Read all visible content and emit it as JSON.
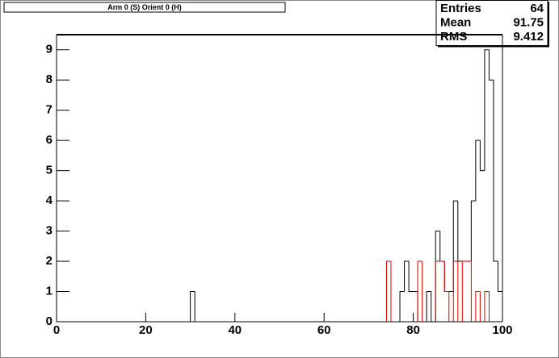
{
  "chart_data": {
    "type": "histogram",
    "title": "Arm 0 (S) Orient 0 (H)",
    "bins": [
      0,
      1,
      2,
      3,
      4,
      5,
      6,
      7,
      8,
      9,
      10,
      11,
      12,
      13,
      14,
      15,
      16,
      17,
      18,
      19,
      20,
      21,
      22,
      23,
      24,
      25,
      26,
      27,
      28,
      29,
      30,
      31,
      32,
      33,
      34,
      35,
      36,
      37,
      38,
      39,
      40,
      41,
      42,
      43,
      44,
      45,
      46,
      47,
      48,
      49,
      50,
      51,
      52,
      53,
      54,
      55,
      56,
      57,
      58,
      59,
      60,
      61,
      62,
      63,
      64,
      65,
      66,
      67,
      68,
      69,
      70,
      71,
      72,
      73,
      74,
      75,
      76,
      77,
      78,
      79,
      80,
      81,
      82,
      83,
      84,
      85,
      86,
      87,
      88,
      89,
      90,
      91,
      92,
      93,
      94,
      95,
      96,
      97,
      98,
      99,
      100
    ],
    "series": [
      {
        "color": "#000000",
        "values": [
          0,
          0,
          0,
          0,
          0,
          0,
          0,
          0,
          0,
          0,
          0,
          0,
          0,
          0,
          0,
          0,
          0,
          0,
          0,
          0,
          0,
          0,
          0,
          0,
          0,
          0,
          0,
          0,
          0,
          0,
          1,
          0,
          0,
          0,
          0,
          0,
          0,
          0,
          0,
          0,
          0,
          0,
          0,
          0,
          0,
          0,
          0,
          0,
          0,
          0,
          0,
          0,
          0,
          0,
          0,
          0,
          0,
          0,
          0,
          0,
          0,
          0,
          0,
          0,
          0,
          0,
          0,
          0,
          0,
          0,
          0,
          0,
          0,
          0,
          0,
          0,
          0,
          1,
          2,
          1,
          1,
          0,
          0,
          1,
          0,
          3,
          2,
          1,
          1,
          4,
          2,
          2,
          2,
          4,
          6,
          5,
          9,
          8,
          2,
          1
        ]
      },
      {
        "color": "#e00000",
        "values": [
          0,
          0,
          0,
          0,
          0,
          0,
          0,
          0,
          0,
          0,
          0,
          0,
          0,
          0,
          0,
          0,
          0,
          0,
          0,
          0,
          0,
          0,
          0,
          0,
          0,
          0,
          0,
          0,
          0,
          0,
          0,
          0,
          0,
          0,
          0,
          0,
          0,
          0,
          0,
          0,
          0,
          0,
          0,
          0,
          0,
          0,
          0,
          0,
          0,
          0,
          0,
          0,
          0,
          0,
          0,
          0,
          0,
          0,
          0,
          0,
          0,
          0,
          0,
          0,
          0,
          0,
          0,
          0,
          0,
          0,
          0,
          0,
          0,
          0,
          2,
          0,
          0,
          0,
          0,
          0,
          0,
          2,
          0,
          0,
          0,
          2,
          2,
          1,
          0,
          2,
          0,
          2,
          2,
          0,
          1,
          0,
          1,
          0,
          0,
          0
        ]
      }
    ],
    "xlim": [
      0,
      100
    ],
    "xticks": [
      0,
      20,
      40,
      60,
      80,
      100
    ],
    "ylim": [
      0,
      9.5
    ],
    "yticks": [
      0,
      1,
      2,
      3,
      4,
      5,
      6,
      7,
      8,
      9
    ],
    "stats": [
      {
        "label": "Entries",
        "value": 64
      },
      {
        "label": "Mean",
        "value": 91.75
      },
      {
        "label": "RMS",
        "value": 9.412
      }
    ]
  }
}
